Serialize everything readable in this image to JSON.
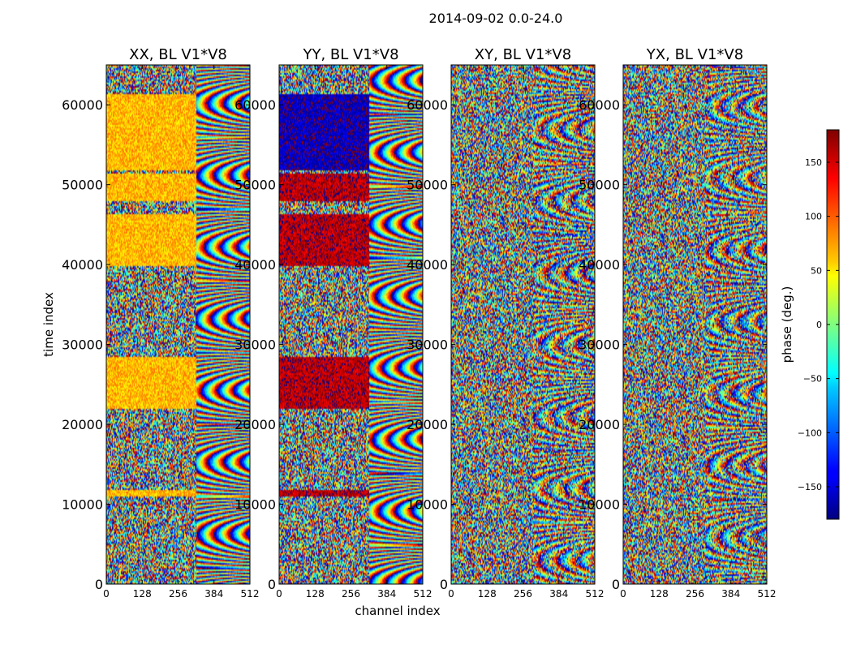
{
  "chart_data": {
    "type": "heatmap",
    "suptitle": "2014-09-02 0.0-24.0",
    "xlabel": "channel index",
    "ylabel": "time index",
    "xlim": [
      0,
      512
    ],
    "ylim": [
      0,
      65000
    ],
    "xticks": [
      0,
      128,
      256,
      384,
      512
    ],
    "yticks": [
      0,
      10000,
      20000,
      30000,
      40000,
      50000,
      60000
    ],
    "panels": [
      {
        "title": "XX, BL V1*V8",
        "pol": "XX",
        "band_phase": 70,
        "bands": [
          [
            11000,
            11800
          ],
          [
            22000,
            28500
          ],
          [
            40000,
            46500
          ],
          [
            48000,
            51500
          ],
          [
            52000,
            61500
          ]
        ]
      },
      {
        "title": "YY, BL V1*V8",
        "pol": "YY",
        "band_phase": 160,
        "bands": [
          [
            11000,
            11800
          ],
          [
            22000,
            28500
          ],
          [
            40000,
            46500
          ],
          [
            48000,
            51500
          ],
          [
            52000,
            61500
          ]
        ],
        "band_phase_alt": [
          [
            52000,
            61500,
            -160
          ]
        ]
      },
      {
        "title": "XY, BL V1*V8",
        "pol": "XY",
        "band_phase": null,
        "bands": []
      },
      {
        "title": "YX, BL V1*V8",
        "pol": "YX",
        "band_phase": null,
        "bands": []
      }
    ],
    "colorbar": {
      "label": "phase (deg.)",
      "range": [
        -180,
        180
      ],
      "ticks": [
        150,
        100,
        50,
        0,
        -50,
        -100,
        -150
      ],
      "tick_labels": [
        "150",
        "100",
        "50",
        "0",
        "−50",
        "−100",
        "−150"
      ],
      "colormap": "jet"
    }
  }
}
